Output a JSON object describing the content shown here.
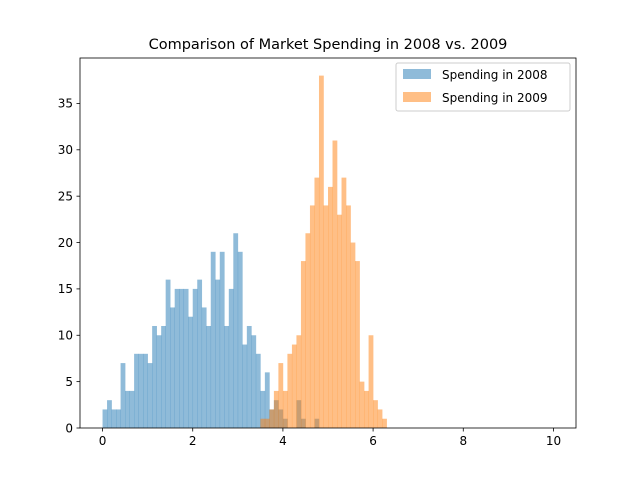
{
  "chart_data": {
    "type": "histogram",
    "title": "Comparison of Market Spending in 2008 vs. 2009",
    "xlabel": "",
    "ylabel": "",
    "xlim": [
      -0.5,
      10.5
    ],
    "ylim": [
      0,
      39.9
    ],
    "bin_width": 0.1,
    "x_ticks": [
      "0",
      "2",
      "4",
      "6",
      "8",
      "10"
    ],
    "y_ticks": [
      "0",
      "5",
      "10",
      "15",
      "20",
      "25",
      "30",
      "35"
    ],
    "grid": false,
    "legend_position": "top-right",
    "series": [
      {
        "name": "Spending in 2008",
        "color": "#1f77b4",
        "opacity": 0.5,
        "bins": [
          [
            0.0,
            2
          ],
          [
            0.1,
            3
          ],
          [
            0.2,
            2
          ],
          [
            0.3,
            2
          ],
          [
            0.4,
            7
          ],
          [
            0.5,
            4
          ],
          [
            0.6,
            4
          ],
          [
            0.7,
            8
          ],
          [
            0.8,
            8
          ],
          [
            0.9,
            8
          ],
          [
            1.0,
            7
          ],
          [
            1.1,
            11
          ],
          [
            1.2,
            10
          ],
          [
            1.3,
            11
          ],
          [
            1.4,
            16
          ],
          [
            1.5,
            13
          ],
          [
            1.6,
            15
          ],
          [
            1.7,
            15
          ],
          [
            1.8,
            15
          ],
          [
            1.9,
            12
          ],
          [
            2.0,
            15
          ],
          [
            2.1,
            16
          ],
          [
            2.2,
            13
          ],
          [
            2.3,
            11
          ],
          [
            2.4,
            19
          ],
          [
            2.5,
            16
          ],
          [
            2.6,
            19
          ],
          [
            2.7,
            11
          ],
          [
            2.8,
            15
          ],
          [
            2.9,
            21
          ],
          [
            3.0,
            19
          ],
          [
            3.1,
            9
          ],
          [
            3.2,
            11
          ],
          [
            3.3,
            10
          ],
          [
            3.4,
            8
          ],
          [
            3.5,
            4
          ],
          [
            3.6,
            6
          ],
          [
            3.7,
            2
          ],
          [
            3.8,
            3
          ],
          [
            3.9,
            2
          ],
          [
            4.0,
            1
          ],
          [
            4.3,
            3
          ],
          [
            4.4,
            1
          ],
          [
            4.7,
            1
          ]
        ]
      },
      {
        "name": "Spending in 2009",
        "color": "#ff7f0e",
        "opacity": 0.5,
        "bins": [
          [
            3.5,
            1
          ],
          [
            3.6,
            1
          ],
          [
            3.7,
            2
          ],
          [
            3.8,
            4
          ],
          [
            3.9,
            7
          ],
          [
            4.0,
            4
          ],
          [
            4.1,
            8
          ],
          [
            4.2,
            9
          ],
          [
            4.3,
            10
          ],
          [
            4.4,
            18
          ],
          [
            4.5,
            21
          ],
          [
            4.6,
            24
          ],
          [
            4.7,
            27
          ],
          [
            4.8,
            38
          ],
          [
            4.9,
            24
          ],
          [
            5.0,
            26
          ],
          [
            5.1,
            31
          ],
          [
            5.2,
            23
          ],
          [
            5.3,
            27
          ],
          [
            5.4,
            24
          ],
          [
            5.5,
            20
          ],
          [
            5.6,
            18
          ],
          [
            5.7,
            5
          ],
          [
            5.8,
            4
          ],
          [
            5.9,
            10
          ],
          [
            6.0,
            3
          ],
          [
            6.1,
            2
          ],
          [
            6.2,
            1
          ]
        ]
      }
    ]
  }
}
